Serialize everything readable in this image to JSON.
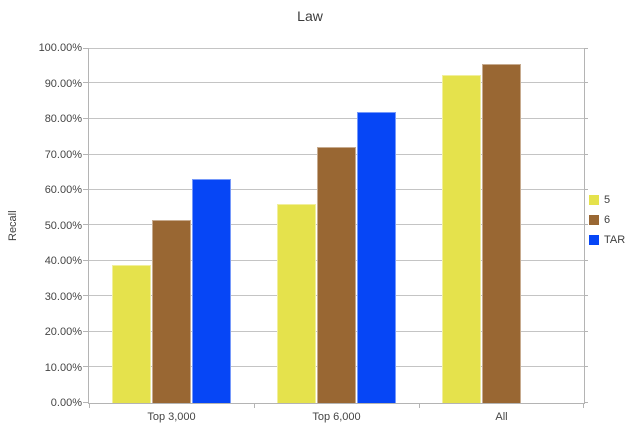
{
  "chart_data": {
    "type": "bar",
    "title": "Law",
    "ylabel": "Recall",
    "xlabel": "",
    "categories": [
      "Top 3,000",
      "Top 6,000",
      "All"
    ],
    "series": [
      {
        "name": "5",
        "color": "#e5e24c",
        "values": [
          39,
          56,
          92.5
        ]
      },
      {
        "name": "6",
        "color": "#996733",
        "values": [
          51.5,
          72,
          95.5
        ]
      },
      {
        "name": "TAR",
        "color": "#0646f6",
        "values": [
          63,
          82,
          null
        ]
      }
    ],
    "ylim": [
      0,
      100
    ],
    "y_tick_step": 10,
    "y_tick_labels": [
      "0.00%",
      "10.00%",
      "20.00%",
      "30.00%",
      "40.00%",
      "50.00%",
      "60.00%",
      "70.00%",
      "80.00%",
      "90.00%",
      "100.00%"
    ],
    "grid": true,
    "legend_position": "right"
  },
  "colors": {
    "axis": "#b4b4b4",
    "grid": "#c4c4c4",
    "text": "#3f3f3f"
  }
}
